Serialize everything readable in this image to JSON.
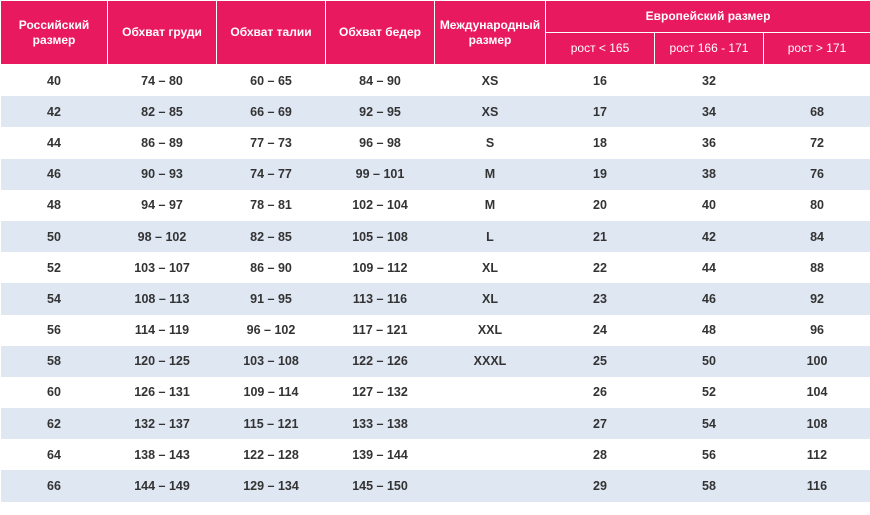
{
  "table": {
    "header": [
      "Российский размер",
      "Обхват груди",
      "Обхват талии",
      "Обхват бедер",
      "Международный размер"
    ],
    "group": "Европейский размер",
    "subheader": [
      "рост < 165",
      "рост 166 - 171",
      "рост > 171"
    ],
    "rows": [
      [
        40,
        "74 – 80",
        "60 – 65",
        "84 – 90",
        "XS",
        16,
        32,
        null
      ],
      [
        42,
        "82 – 85",
        "66 – 69",
        "92 – 95",
        "XS",
        17,
        34,
        68
      ],
      [
        44,
        "86 – 89",
        "77 – 73",
        "96 – 98",
        "S",
        18,
        36,
        72
      ],
      [
        46,
        "90 – 93",
        "74 – 77",
        "99 – 101",
        "M",
        19,
        38,
        76
      ],
      [
        48,
        "94 – 97",
        "78 – 81",
        "102 – 104",
        "M",
        20,
        40,
        80
      ],
      [
        50,
        "98 – 102",
        "82 – 85",
        "105 – 108",
        "L",
        21,
        42,
        84
      ],
      [
        52,
        "103 – 107",
        "86 – 90",
        "109 – 112",
        "XL",
        22,
        44,
        88
      ],
      [
        54,
        "108 – 113",
        "91 – 95",
        "113 – 116",
        "XL",
        23,
        46,
        92
      ],
      [
        56,
        "114 – 119",
        "96 – 102",
        "117 – 121",
        "XXL",
        24,
        48,
        96
      ],
      [
        58,
        "120 – 125",
        "103 – 108",
        "122 – 126",
        "XXXL",
        25,
        50,
        100
      ],
      [
        60,
        "126 – 131",
        "109 – 114",
        "127 – 132",
        null,
        26,
        52,
        104
      ],
      [
        62,
        "132 – 137",
        "115 – 121",
        "133 – 138",
        null,
        27,
        54,
        108
      ],
      [
        64,
        "138 – 143",
        "122 – 128",
        "139 – 144",
        null,
        28,
        56,
        112
      ],
      [
        66,
        "144 – 149",
        "129 – 134",
        "145 – 150",
        null,
        29,
        58,
        116
      ]
    ]
  }
}
